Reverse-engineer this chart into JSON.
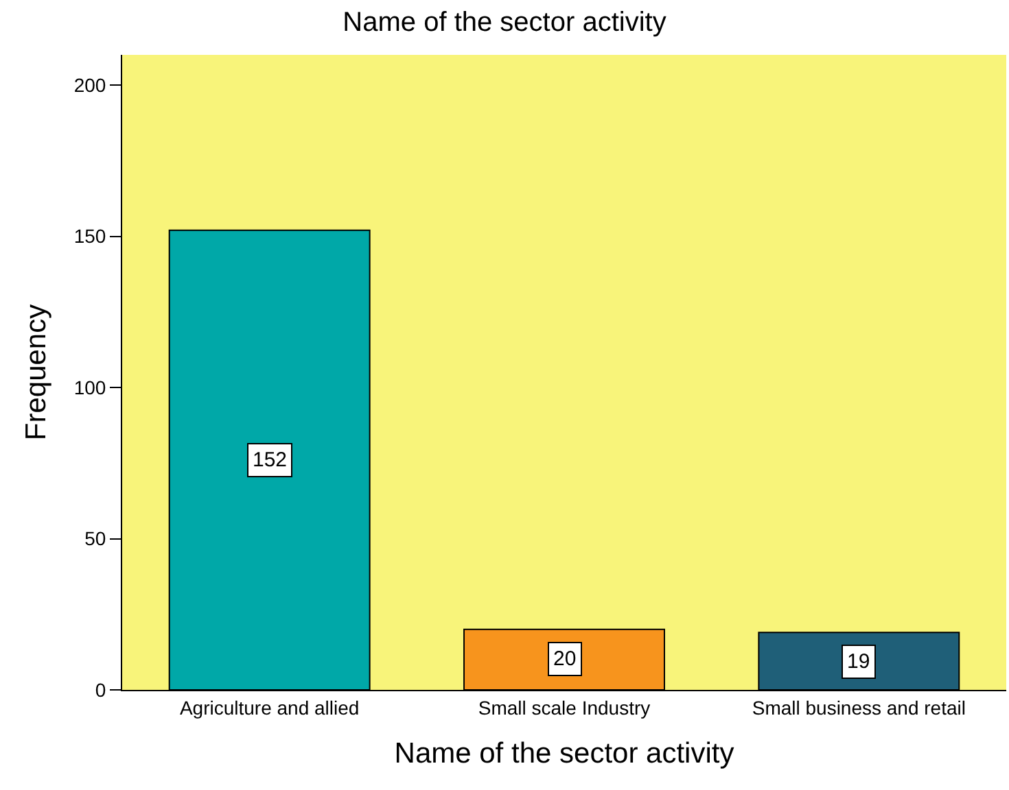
{
  "chart_data": {
    "type": "bar",
    "title": "Name of the sector activity",
    "xlabel": "Name of the sector activity",
    "ylabel": "Frequency",
    "categories": [
      "Agriculture and allied",
      "Small scale Industry",
      "Small business and retail"
    ],
    "values": [
      152,
      20,
      19
    ],
    "colors": [
      "#00a8a8",
      "#f7941d",
      "#1f5f78"
    ],
    "ylim": [
      0,
      210
    ],
    "yticks": [
      0,
      50,
      100,
      150,
      200
    ],
    "grid": false,
    "data_labels": true
  }
}
